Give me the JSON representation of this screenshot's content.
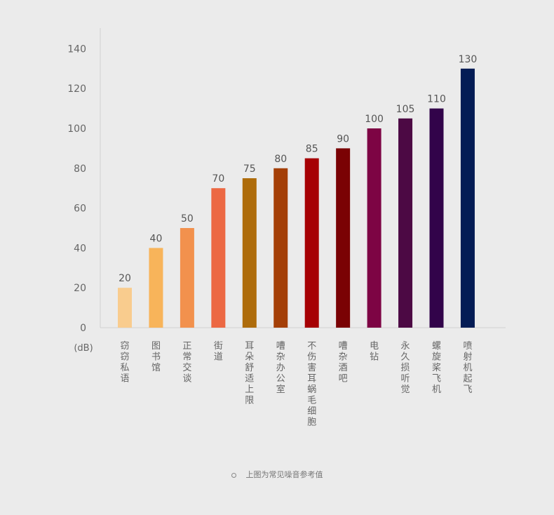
{
  "chart_data": {
    "type": "bar",
    "categories": [
      "窃窃私语",
      "图书馆",
      "正常交谈",
      "街道",
      "耳朵舒适上限",
      "嘈杂办公室",
      "不伤害耳蜗毛细胞",
      "嘈杂酒吧",
      "电钻",
      "永久损听觉",
      "螺旋桨飞机",
      "喷射机起飞"
    ],
    "values": [
      20,
      40,
      50,
      70,
      75,
      80,
      85,
      90,
      100,
      105,
      110,
      130
    ],
    "colors": [
      "#f9cc8e",
      "#f8b45a",
      "#f2914d",
      "#ec6843",
      "#ae6c0b",
      "#a43f07",
      "#a60004",
      "#7a0204",
      "#7d0444",
      "#4c0944",
      "#32034a",
      "#041c55"
    ],
    "y_ticks": [
      "0",
      "20",
      "40",
      "60",
      "80",
      "100",
      "120",
      "140"
    ],
    "ylim": [
      0,
      150
    ],
    "unit_label": "(dB)",
    "grid": false,
    "title": "",
    "xlabel": "",
    "ylabel": ""
  },
  "caption": "上图为常见噪音参考值"
}
